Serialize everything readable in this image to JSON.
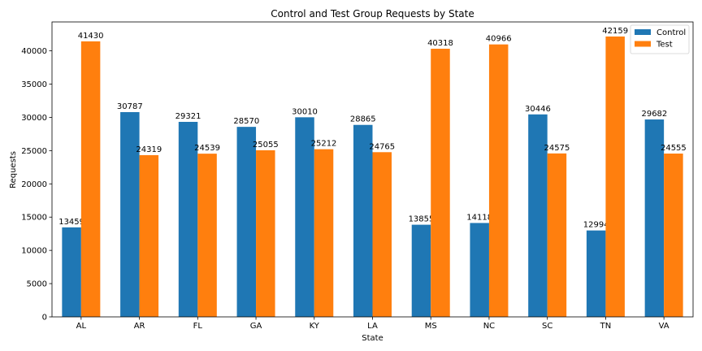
{
  "chart_data": {
    "type": "bar",
    "title": "Control and Test Group Requests by State",
    "xlabel": "State",
    "ylabel": "Requests",
    "categories": [
      "AL",
      "AR",
      "FL",
      "GA",
      "KY",
      "LA",
      "MS",
      "NC",
      "SC",
      "TN",
      "VA"
    ],
    "series": [
      {
        "name": "Control",
        "color": "#1f77b4",
        "values": [
          13459,
          30787,
          29321,
          28570,
          30010,
          28865,
          13855,
          14118,
          30446,
          12994,
          29682
        ]
      },
      {
        "name": "Test",
        "color": "#ff7f0e",
        "values": [
          41430,
          24319,
          24539,
          25055,
          25212,
          24765,
          40318,
          40966,
          24575,
          42159,
          24555
        ]
      }
    ],
    "ylim": [
      0,
      44347
    ],
    "yticks": [
      0,
      5000,
      10000,
      15000,
      20000,
      25000,
      30000,
      35000,
      40000
    ],
    "grid": false,
    "legend_position": "top-right",
    "data_labels": true
  }
}
